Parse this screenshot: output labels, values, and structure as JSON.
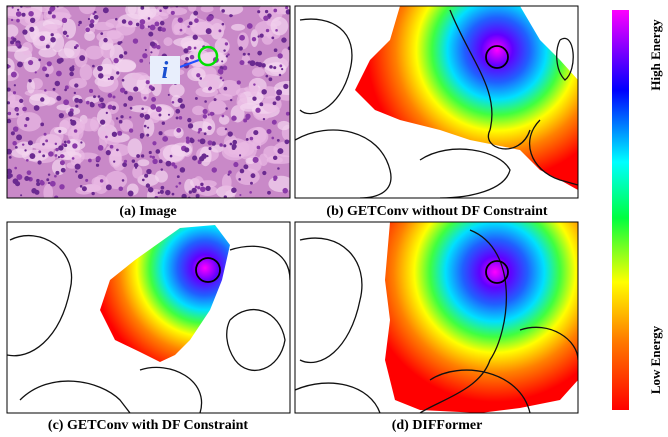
{
  "panels": [
    {
      "caption": "(a) Image",
      "marker": "i"
    },
    {
      "caption": "(b) GETConv without DF Constraint"
    },
    {
      "caption": "(c) GETConv with DF Constraint"
    },
    {
      "caption": "(d) DIFFormer"
    }
  ],
  "colorbar": {
    "top_label": "High Energy",
    "bottom_label": "Low Energy"
  }
}
